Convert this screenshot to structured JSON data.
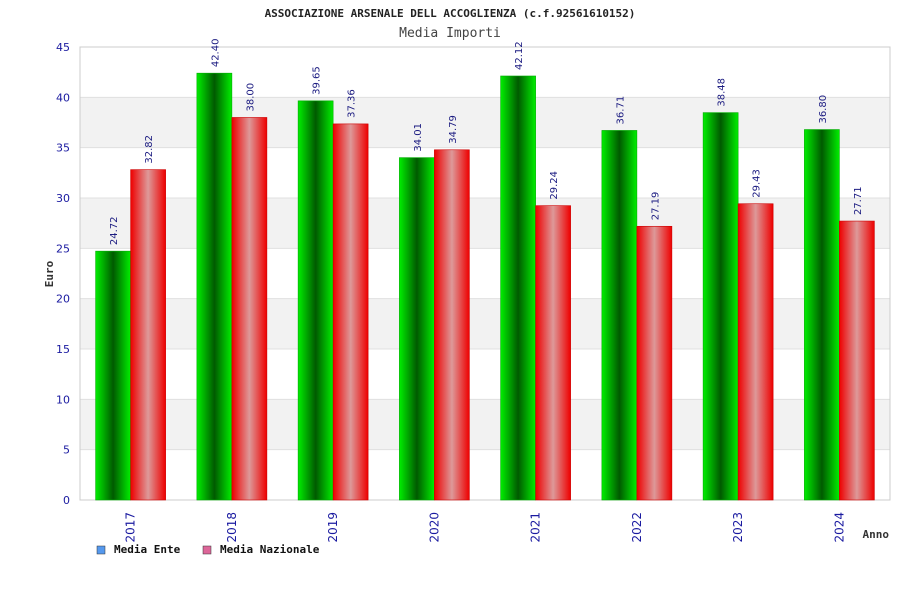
{
  "chart_data": {
    "type": "bar",
    "title": "ASSOCIAZIONE ARSENALE DELL ACCOGLIENZA (c.f.92561610152)",
    "subtitle": "Media Importi",
    "xlabel": "Anno",
    "ylabel": "Euro",
    "ylim": [
      0,
      45
    ],
    "yticks": [
      0,
      5,
      10,
      15,
      20,
      25,
      30,
      35,
      40,
      45
    ],
    "grid": true,
    "legend_position": "bottom-left",
    "categories": [
      "2017",
      "2018",
      "2019",
      "2020",
      "2021",
      "2022",
      "2023",
      "2024"
    ],
    "series": [
      {
        "name": "Media Ente",
        "color": "#00c000",
        "legend_color": "#5599ee",
        "values": [
          24.72,
          42.4,
          39.65,
          34.01,
          42.12,
          36.71,
          38.48,
          36.8
        ],
        "labels": [
          "24.72",
          "42.40",
          "39.65",
          "34.01",
          "42.12",
          "36.71",
          "38.48",
          "36.80"
        ]
      },
      {
        "name": "Media Nazionale",
        "color": "#ee1122",
        "legend_color": "#dd6699",
        "values": [
          32.82,
          38.0,
          37.36,
          34.79,
          29.24,
          27.19,
          29.43,
          27.71
        ],
        "labels": [
          "32.82",
          "38.00",
          "37.36",
          "34.79",
          "29.24",
          "27.19",
          "29.43",
          "27.71"
        ]
      }
    ]
  }
}
